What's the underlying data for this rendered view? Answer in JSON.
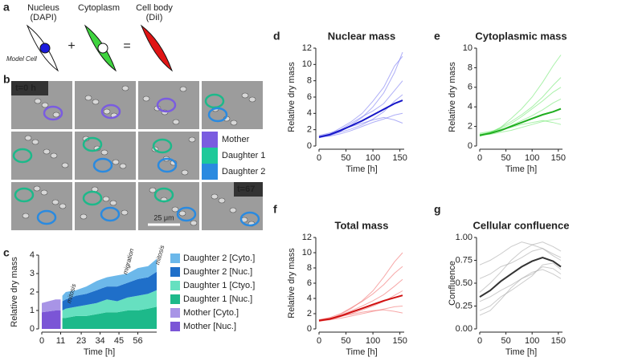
{
  "panel_labels": [
    "a",
    "b",
    "c",
    "d",
    "e",
    "f",
    "g"
  ],
  "panel_a": {
    "nucleus": [
      "Nucleus",
      "(DAPI)"
    ],
    "cytoplasm": "Cytoplasm",
    "cell_body": [
      "Cell body",
      "(DiI)"
    ],
    "model_cell": "Model Cell",
    "plus": "+",
    "equals": "="
  },
  "panel_b": {
    "start_time": "t=0 h",
    "end_time": "t=67",
    "scale_bar": "25 μm",
    "legend": [
      "Mother",
      "Daughter 1",
      "Daughter 2"
    ]
  },
  "chart_data": [
    {
      "type": "area",
      "stacked": true,
      "xlabel": "Time [h]",
      "ylabel": "Relative dry mass",
      "annotations": [
        "mitosis",
        "migration",
        "mitosis"
      ],
      "x": [
        0,
        4,
        8,
        11,
        12,
        14,
        20,
        26,
        32,
        38,
        44,
        50,
        56,
        62,
        67
      ],
      "xlim": [
        0,
        67
      ],
      "xticks": [
        0,
        11,
        23,
        34,
        45,
        56
      ],
      "ylim": [
        0,
        4
      ],
      "yticks": [
        0,
        1,
        2,
        3,
        4
      ],
      "series": [
        {
          "name": "Daughter 2 [Cyto.]",
          "color": "#6cb8ea",
          "values": [
            null,
            null,
            null,
            null,
            0.3,
            0.4,
            0.3,
            0.4,
            0.5,
            0.5,
            0.6,
            0.5,
            0.6,
            0.6,
            0.7
          ]
        },
        {
          "name": "Daughter 2 [Nuc.]",
          "color": "#1f6fc9",
          "values": [
            null,
            null,
            null,
            null,
            0.5,
            0.5,
            0.6,
            0.6,
            0.7,
            0.7,
            0.8,
            0.8,
            0.9,
            0.9,
            1.0
          ]
        },
        {
          "name": "Daughter 1 [Ctyo.]",
          "color": "#66e0c0",
          "values": [
            null,
            null,
            null,
            null,
            0.4,
            0.5,
            0.5,
            0.6,
            0.6,
            0.7,
            0.6,
            0.7,
            0.8,
            0.8,
            0.9
          ]
        },
        {
          "name": "Daughter 1 [Nuc.]",
          "color": "#1db98a",
          "values": [
            null,
            null,
            null,
            null,
            0.6,
            0.6,
            0.7,
            0.7,
            0.8,
            0.9,
            0.9,
            1.0,
            1.0,
            1.1,
            1.2
          ]
        },
        {
          "name": "Mother [Cyto.]",
          "color": "#a894e6",
          "values": [
            0.5,
            0.55,
            0.6,
            0.6,
            null,
            null,
            null,
            null,
            null,
            null,
            null,
            null,
            null,
            null,
            null
          ]
        },
        {
          "name": "Mother [Nuc.]",
          "color": "#7b55d6",
          "values": [
            0.9,
            0.95,
            1.0,
            1.0,
            null,
            null,
            null,
            null,
            null,
            null,
            null,
            null,
            null,
            null,
            null
          ]
        }
      ]
    },
    {
      "type": "line",
      "title": "Nuclear mass",
      "title_color": "#1a1adb",
      "xlabel": "Time [h]",
      "ylabel": "Relative dry mass",
      "x": [
        0,
        20,
        40,
        60,
        80,
        100,
        120,
        140,
        155
      ],
      "xlim": [
        0,
        158
      ],
      "xticks": [
        0,
        50,
        100,
        150
      ],
      "ylim": [
        0,
        12
      ],
      "yticks": [
        0,
        2,
        4,
        6,
        8,
        10,
        12
      ],
      "series": [
        {
          "color": "#1515c8",
          "values": [
            1.1,
            1.4,
            1.9,
            2.5,
            3.1,
            3.8,
            4.5,
            5.2,
            5.6
          ]
        },
        {
          "color": "#7a7af2",
          "values": [
            1.0,
            1.3,
            1.8,
            2.6,
            3.5,
            4.8,
            6.5,
            9.0,
            11.5
          ]
        },
        {
          "color": "#7a7af2",
          "values": [
            1.2,
            1.5,
            2.2,
            3.0,
            4.0,
            5.5,
            7.2,
            9.8,
            11.0
          ]
        },
        {
          "color": "#7a7af2",
          "values": [
            1.1,
            1.2,
            1.5,
            1.9,
            2.4,
            2.9,
            3.3,
            3.8,
            4.0
          ]
        },
        {
          "color": "#7a7af2",
          "values": [
            1.0,
            1.3,
            1.7,
            2.1,
            2.6,
            3.3,
            4.2,
            5.5,
            6.3
          ]
        },
        {
          "color": "#7a7af2",
          "values": [
            1.3,
            1.6,
            2.0,
            2.4,
            2.8,
            3.2,
            3.5,
            3.2,
            2.8
          ]
        },
        {
          "color": "#7a7af2",
          "values": [
            1.1,
            1.4,
            2.0,
            2.8,
            3.6,
            4.3,
            5.2,
            6.8,
            8.0
          ]
        }
      ]
    },
    {
      "type": "line",
      "title": "Cytoplasmic mass",
      "title_color": "#2ecc40",
      "xlabel": "Time [h]",
      "ylabel": "Relative dry mass",
      "x": [
        0,
        20,
        40,
        60,
        80,
        100,
        120,
        140,
        155
      ],
      "xlim": [
        0,
        158
      ],
      "xticks": [
        0,
        50,
        100,
        150
      ],
      "ylim": [
        0,
        10
      ],
      "yticks": [
        0,
        2,
        4,
        6,
        8,
        10
      ],
      "series": [
        {
          "color": "#1fae1f",
          "values": [
            1.1,
            1.3,
            1.6,
            2.0,
            2.4,
            2.8,
            3.2,
            3.5,
            3.8
          ]
        },
        {
          "color": "#72e872",
          "values": [
            1.0,
            1.3,
            1.9,
            2.8,
            3.8,
            5.0,
            6.5,
            8.2,
            9.3
          ]
        },
        {
          "color": "#72e872",
          "values": [
            1.2,
            1.4,
            1.8,
            2.3,
            3.0,
            3.8,
            4.6,
            5.5,
            6.0
          ]
        },
        {
          "color": "#72e872",
          "values": [
            1.1,
            1.2,
            1.4,
            1.6,
            1.9,
            2.2,
            2.5,
            2.7,
            2.8
          ]
        },
        {
          "color": "#72e872",
          "values": [
            1.0,
            1.3,
            1.6,
            2.1,
            2.6,
            3.1,
            3.7,
            4.4,
            4.8
          ]
        },
        {
          "color": "#72e872",
          "values": [
            1.3,
            1.5,
            1.7,
            1.9,
            2.2,
            2.4,
            2.6,
            2.4,
            2.2
          ]
        },
        {
          "color": "#72e872",
          "values": [
            1.1,
            1.4,
            1.9,
            2.5,
            3.2,
            4.0,
            5.0,
            6.2,
            7.0
          ]
        }
      ]
    },
    {
      "type": "line",
      "title": "Total mass",
      "title_color": "#e01515",
      "xlabel": "Time [h]",
      "ylabel": "Relative dry mass",
      "x": [
        0,
        20,
        40,
        60,
        80,
        100,
        120,
        140,
        155
      ],
      "xlim": [
        0,
        158
      ],
      "xticks": [
        0,
        50,
        100,
        150
      ],
      "ylim": [
        0,
        12
      ],
      "yticks": [
        0,
        2,
        4,
        6,
        8,
        10,
        12
      ],
      "series": [
        {
          "color": "#d01010",
          "values": [
            1.1,
            1.3,
            1.7,
            2.2,
            2.7,
            3.2,
            3.7,
            4.1,
            4.4
          ]
        },
        {
          "color": "#f27070",
          "values": [
            1.0,
            1.3,
            1.9,
            2.7,
            3.7,
            5.0,
            6.8,
            8.8,
            10.0
          ]
        },
        {
          "color": "#f27070",
          "values": [
            1.2,
            1.5,
            2.0,
            2.8,
            3.6,
            4.6,
            5.8,
            7.3,
            8.2
          ]
        },
        {
          "color": "#f27070",
          "values": [
            1.1,
            1.2,
            1.4,
            1.7,
            2.0,
            2.3,
            2.6,
            2.9,
            3.0
          ]
        },
        {
          "color": "#f27070",
          "values": [
            1.0,
            1.2,
            1.6,
            2.0,
            2.5,
            3.0,
            3.6,
            4.4,
            5.0
          ]
        },
        {
          "color": "#f27070",
          "values": [
            1.2,
            1.4,
            1.7,
            1.9,
            2.2,
            2.4,
            2.5,
            2.3,
            2.1
          ]
        },
        {
          "color": "#f27070",
          "values": [
            1.1,
            1.4,
            1.8,
            2.4,
            3.0,
            3.7,
            4.5,
            5.6,
            6.5
          ]
        }
      ]
    },
    {
      "type": "line",
      "title": "Cellular confluence",
      "title_color": "#111111",
      "xlabel": "Time [h]",
      "ylabel": "Confluence",
      "x": [
        0,
        20,
        40,
        60,
        80,
        100,
        120,
        140,
        155
      ],
      "xlim": [
        0,
        158
      ],
      "xticks": [
        0,
        50,
        100,
        150
      ],
      "ylim": [
        0,
        1
      ],
      "yticks": [
        {
          "value": 0,
          "label": "0.00"
        },
        0.25,
        {
          "value": 0.5,
          "label": "0.50"
        },
        0.75,
        {
          "value": 1,
          "label": "1.00"
        }
      ],
      "series": [
        {
          "color": "#333333",
          "values": [
            0.35,
            0.42,
            0.52,
            0.6,
            0.68,
            0.74,
            0.78,
            0.74,
            0.68
          ]
        },
        {
          "color": "#a8a8a8",
          "values": [
            0.7,
            0.75,
            0.82,
            0.9,
            0.95,
            0.92,
            0.88,
            0.8,
            0.75
          ]
        },
        {
          "color": "#a8a8a8",
          "values": [
            0.15,
            0.2,
            0.32,
            0.45,
            0.55,
            0.62,
            0.65,
            0.6,
            0.55
          ]
        },
        {
          "color": "#a8a8a8",
          "values": [
            0.4,
            0.5,
            0.62,
            0.75,
            0.85,
            0.92,
            0.95,
            0.9,
            0.85
          ]
        },
        {
          "color": "#a8a8a8",
          "values": [
            0.3,
            0.35,
            0.42,
            0.48,
            0.55,
            0.6,
            0.68,
            0.66,
            0.6
          ]
        },
        {
          "color": "#a8a8a8",
          "values": [
            0.55,
            0.6,
            0.68,
            0.72,
            0.78,
            0.85,
            0.88,
            0.82,
            0.78
          ]
        },
        {
          "color": "#a8a8a8",
          "values": [
            0.2,
            0.25,
            0.35,
            0.42,
            0.5,
            0.58,
            0.7,
            0.72,
            0.65
          ]
        }
      ]
    }
  ]
}
